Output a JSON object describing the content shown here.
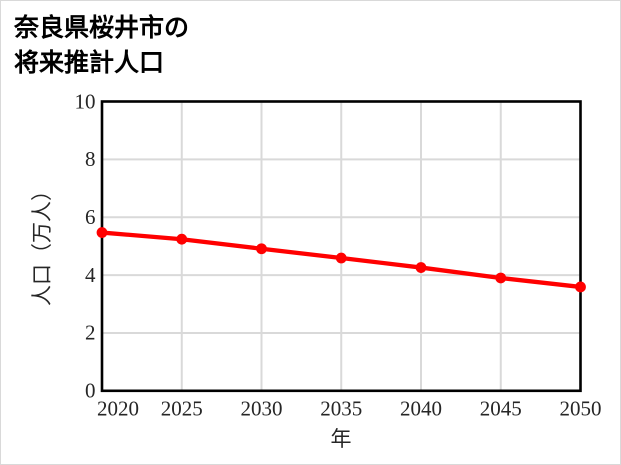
{
  "figure": {
    "title_line1": "奈良県桜井市の",
    "title_line2": "将来推計人口"
  },
  "chart_data": {
    "type": "line",
    "title": "奈良県桜井市の将来推計人口",
    "xlabel": "年",
    "ylabel": "人口（万人）",
    "x": [
      2020,
      2025,
      2030,
      2035,
      2040,
      2045,
      2050
    ],
    "values": [
      5.47,
      5.24,
      4.91,
      4.59,
      4.26,
      3.9,
      3.59
    ],
    "x_ticks": [
      2020,
      2025,
      2030,
      2035,
      2040,
      2045,
      2050
    ],
    "y_ticks": [
      0,
      2,
      4,
      6,
      8,
      10
    ],
    "xlim": [
      2020,
      2050
    ],
    "ylim": [
      0,
      10
    ],
    "grid": true,
    "legend": "none",
    "line_color": "#ff0000",
    "marker": "circle",
    "grid_color": "#d9d9d9",
    "axis_color": "#000000"
  }
}
